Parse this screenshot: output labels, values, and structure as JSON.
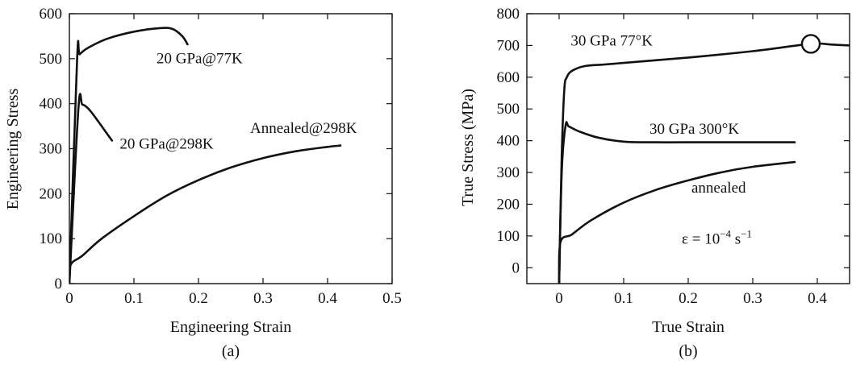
{
  "chart_data": [
    {
      "type": "line",
      "panel_label": "(a)",
      "xlabel": "Engineering Strain",
      "ylabel": "Engineering Stress",
      "xlim": [
        0,
        0.5
      ],
      "ylim": [
        0,
        600
      ],
      "xticks": [
        0,
        0.1,
        0.2,
        0.3,
        0.4,
        0.5
      ],
      "xtick_labels": [
        "0",
        "0.1",
        "0.2",
        "0.3",
        "0.4",
        "0.5"
      ],
      "yticks": [
        0,
        100,
        200,
        300,
        400,
        500,
        600
      ],
      "ytick_labels": [
        "0",
        "100",
        "200",
        "300",
        "400",
        "500",
        "600"
      ],
      "grid": false,
      "series": [
        {
          "name": "20 GPa@77K",
          "x": [
            0,
            0.012,
            0.016,
            0.03,
            0.06,
            0.1,
            0.14,
            0.16,
            0.175,
            0.183
          ],
          "y": [
            0,
            500,
            510,
            525,
            545,
            560,
            568,
            566,
            550,
            532
          ]
        },
        {
          "name": "20 GPa@298K",
          "x": [
            0,
            0.014,
            0.02,
            0.03,
            0.045,
            0.055,
            0.066
          ],
          "y": [
            0,
            390,
            398,
            388,
            360,
            340,
            318
          ]
        },
        {
          "name": "Annealed@298K",
          "x": [
            0,
            0.002,
            0.02,
            0.05,
            0.1,
            0.15,
            0.2,
            0.25,
            0.3,
            0.35,
            0.4,
            0.42
          ],
          "y": [
            0,
            42,
            62,
            100,
            150,
            195,
            230,
            258,
            279,
            294,
            304,
            307
          ]
        }
      ],
      "annotations": [
        {
          "text": "20 GPa@77K",
          "x": 0.135,
          "y": 490
        },
        {
          "text": "20 GPa@298K",
          "x": 0.078,
          "y": 300
        },
        {
          "text": "Annealed@298K",
          "x": 0.28,
          "y": 335
        }
      ]
    },
    {
      "type": "line",
      "panel_label": "(b)",
      "xlabel": "True Strain",
      "ylabel": "True Stress (MPa)",
      "xlim": [
        -0.05,
        0.45
      ],
      "ylim": [
        -50,
        800
      ],
      "xticks": [
        0,
        0.1,
        0.2,
        0.3,
        0.4
      ],
      "xtick_labels": [
        "0",
        "0.1",
        "0.2",
        "0.3",
        "0.4"
      ],
      "yticks": [
        0,
        100,
        200,
        300,
        400,
        500,
        600,
        700,
        800
      ],
      "ytick_labels": [
        "0",
        "100",
        "200",
        "300",
        "400",
        "500",
        "600",
        "700",
        "800"
      ],
      "grid": false,
      "series": [
        {
          "name": "30 GPa 77°K",
          "x": [
            0,
            0.004,
            0.008,
            0.012,
            0.02,
            0.04,
            0.07,
            0.1,
            0.2,
            0.3,
            0.39,
            0.42,
            0.45
          ],
          "y": [
            -50,
            350,
            560,
            600,
            620,
            635,
            640,
            645,
            662,
            682,
            705,
            703,
            700
          ]
        },
        {
          "name": "30 GPa 300°K",
          "x": [
            0,
            0.004,
            0.01,
            0.015,
            0.03,
            0.06,
            0.1,
            0.15,
            0.2,
            0.3,
            0.365
          ],
          "y": [
            -50,
            300,
            448,
            445,
            430,
            410,
            397,
            395,
            395,
            395,
            395
          ]
        },
        {
          "name": "annealed",
          "x": [
            0,
            0.002,
            0.02,
            0.05,
            0.1,
            0.15,
            0.2,
            0.25,
            0.3,
            0.365
          ],
          "y": [
            -50,
            80,
            105,
            150,
            205,
            245,
            275,
            300,
            318,
            333
          ]
        }
      ],
      "marker": {
        "shape": "circle",
        "x": 0.39,
        "y": 705
      },
      "annotations": [
        {
          "text": "30 GPa 77°K",
          "x": 0.018,
          "y": 700
        },
        {
          "text": "30 GPa 300°K",
          "x": 0.14,
          "y": 422
        },
        {
          "text": "annealed",
          "x": 0.205,
          "y": 237
        },
        {
          "text": "ε = 10",
          "sup": "−4",
          "unit": " s",
          "unit_sup": "−1",
          "x": 0.19,
          "y": 75
        }
      ]
    }
  ]
}
